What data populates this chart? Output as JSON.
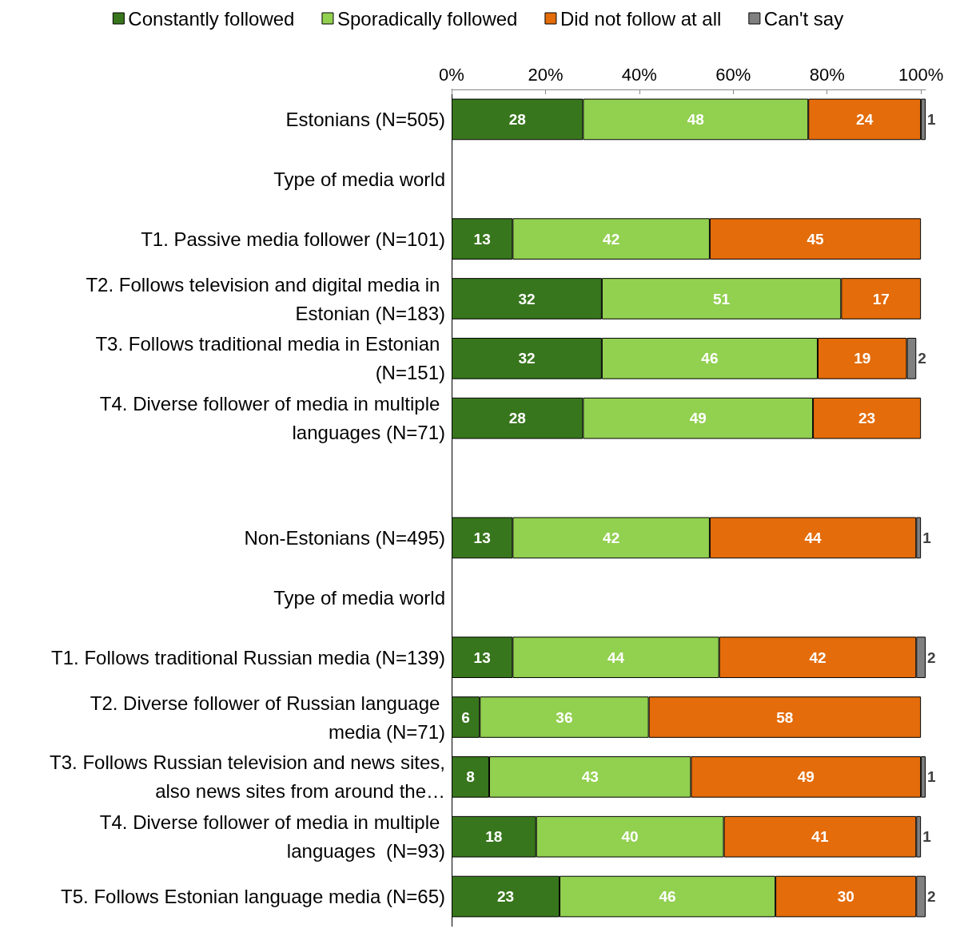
{
  "chart_data": {
    "type": "bar",
    "orientation": "horizontal",
    "stacked": true,
    "data_labels": true,
    "grid": false,
    "legend": "top",
    "categories": [
      "Estonians (N=505)",
      "Type of media world",
      "T1. Passive media follower (N=101)",
      "T2. Follows television and digital media in Estonian (N=183)",
      "T3. Follows traditional media in Estonian (N=151)",
      "T4. Diverse follower of media in multiple languages (N=71)",
      null,
      "Non-Estonians (N=495)",
      "Type of media world",
      "T1. Follows traditional Russian media (N=139)",
      "T2. Diverse follower of Russian language media (N=71)",
      "T3. Follows Russian television and news sites, also news sites from around the…",
      "T4. Diverse follower of media in multiple languages  (N=93)",
      "T5. Follows Estonian language media (N=65)"
    ],
    "xlim": [
      0,
      101
    ],
    "xticks": [
      {
        "value": 0,
        "label": "0%"
      },
      {
        "value": 20,
        "label": "20%"
      },
      {
        "value": 40,
        "label": "40%"
      },
      {
        "value": 60,
        "label": "60%"
      },
      {
        "value": 80,
        "label": "80%"
      },
      {
        "value": 100,
        "label": "100%"
      }
    ],
    "series": [
      {
        "name": "Constantly followed",
        "color": "#38761d",
        "values": [
          28,
          null,
          13,
          32,
          32,
          28,
          null,
          13,
          null,
          13,
          6,
          8,
          18,
          23
        ]
      },
      {
        "name": "Sporadically followed",
        "color": "#92d050",
        "values": [
          48,
          null,
          42,
          51,
          46,
          49,
          null,
          42,
          null,
          44,
          36,
          43,
          40,
          46
        ]
      },
      {
        "name": "Did not follow at all",
        "color": "#e46c0a",
        "values": [
          24,
          null,
          45,
          17,
          19,
          23,
          null,
          44,
          null,
          42,
          58,
          49,
          41,
          30
        ]
      },
      {
        "name": "Can't say",
        "color": "#808080",
        "values": [
          1,
          null,
          null,
          null,
          2,
          null,
          null,
          1,
          null,
          2,
          null,
          1,
          1,
          2
        ]
      }
    ]
  }
}
